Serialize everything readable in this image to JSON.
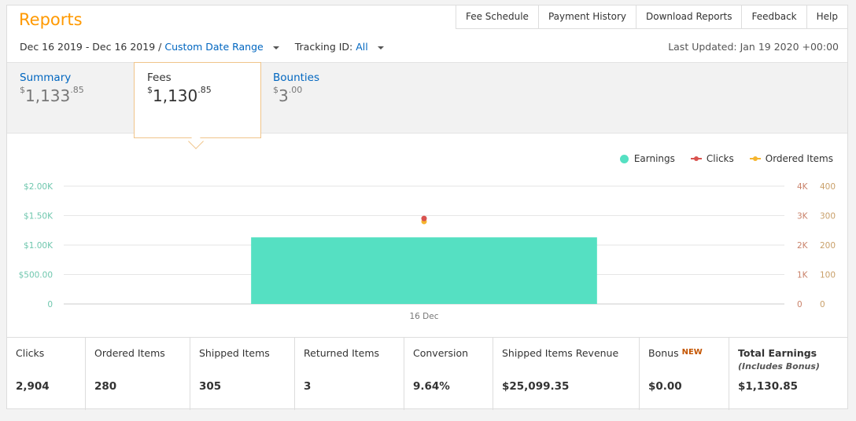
{
  "header": {
    "title": "Reports",
    "nav": [
      "Fee Schedule",
      "Payment History",
      "Download Reports",
      "Feedback",
      "Help"
    ]
  },
  "filters": {
    "date_range": "Dec 16 2019 - Dec 16 2019",
    "separator": "/",
    "date_range_link": "Custom Date Range",
    "tracking_label": "Tracking ID:",
    "tracking_value": "All",
    "last_updated": "Last Updated: Jan 19 2020 +00:00"
  },
  "tabs": {
    "summary": {
      "label": "Summary",
      "currency": "$",
      "whole": "1,133",
      "cents": ".85"
    },
    "fees": {
      "label": "Fees",
      "currency": "$",
      "whole": "1,130",
      "cents": ".85"
    },
    "bounties": {
      "label": "Bounties",
      "currency": "$",
      "whole": "3",
      "cents": ".00"
    }
  },
  "legend": [
    {
      "label": "Earnings",
      "color": "#55e0c2"
    },
    {
      "label": "Clicks",
      "color": "#d9534f"
    },
    {
      "label": "Ordered Items",
      "color": "#f5b52e"
    }
  ],
  "chart_data": {
    "type": "bar",
    "categories": [
      "16 Dec"
    ],
    "series": [
      {
        "name": "Earnings",
        "values": [
          1130.85
        ],
        "color": "#55e0c2",
        "axis": "left"
      },
      {
        "name": "Clicks",
        "values": [
          2904
        ],
        "color": "#d9534f",
        "axis": "right1"
      },
      {
        "name": "Ordered Items",
        "values": [
          280
        ],
        "color": "#f5b52e",
        "axis": "right2"
      }
    ],
    "left_axis": {
      "ylim": [
        0,
        2000
      ],
      "ticks": [
        "0",
        "$500.00",
        "$1.00K",
        "$1.50K",
        "$2.00K"
      ],
      "color": "#6fc7ae"
    },
    "right1_axis": {
      "ylim": [
        0,
        4000
      ],
      "ticks": [
        "0",
        "1K",
        "2K",
        "3K",
        "4K"
      ],
      "color": "#c9826a"
    },
    "right2_axis": {
      "ylim": [
        0,
        400
      ],
      "ticks": [
        "0",
        "100",
        "200",
        "300",
        "400"
      ],
      "color": "#c9a06a"
    },
    "grid": true,
    "legend_position": "top-right"
  },
  "stats": [
    {
      "label": "Clicks",
      "value": "2,904"
    },
    {
      "label": "Ordered Items",
      "value": "280"
    },
    {
      "label": "Shipped Items",
      "value": "305"
    },
    {
      "label": "Returned Items",
      "value": "3"
    },
    {
      "label": "Conversion",
      "value": "9.64%"
    },
    {
      "label": "Shipped Items Revenue",
      "value": "$25,099.35"
    },
    {
      "label": "Bonus",
      "badge": "NEW",
      "value": "$0.00"
    },
    {
      "label": "Total Earnings",
      "sublabel": "(Includes Bonus)",
      "value": "$1,130.85"
    }
  ]
}
